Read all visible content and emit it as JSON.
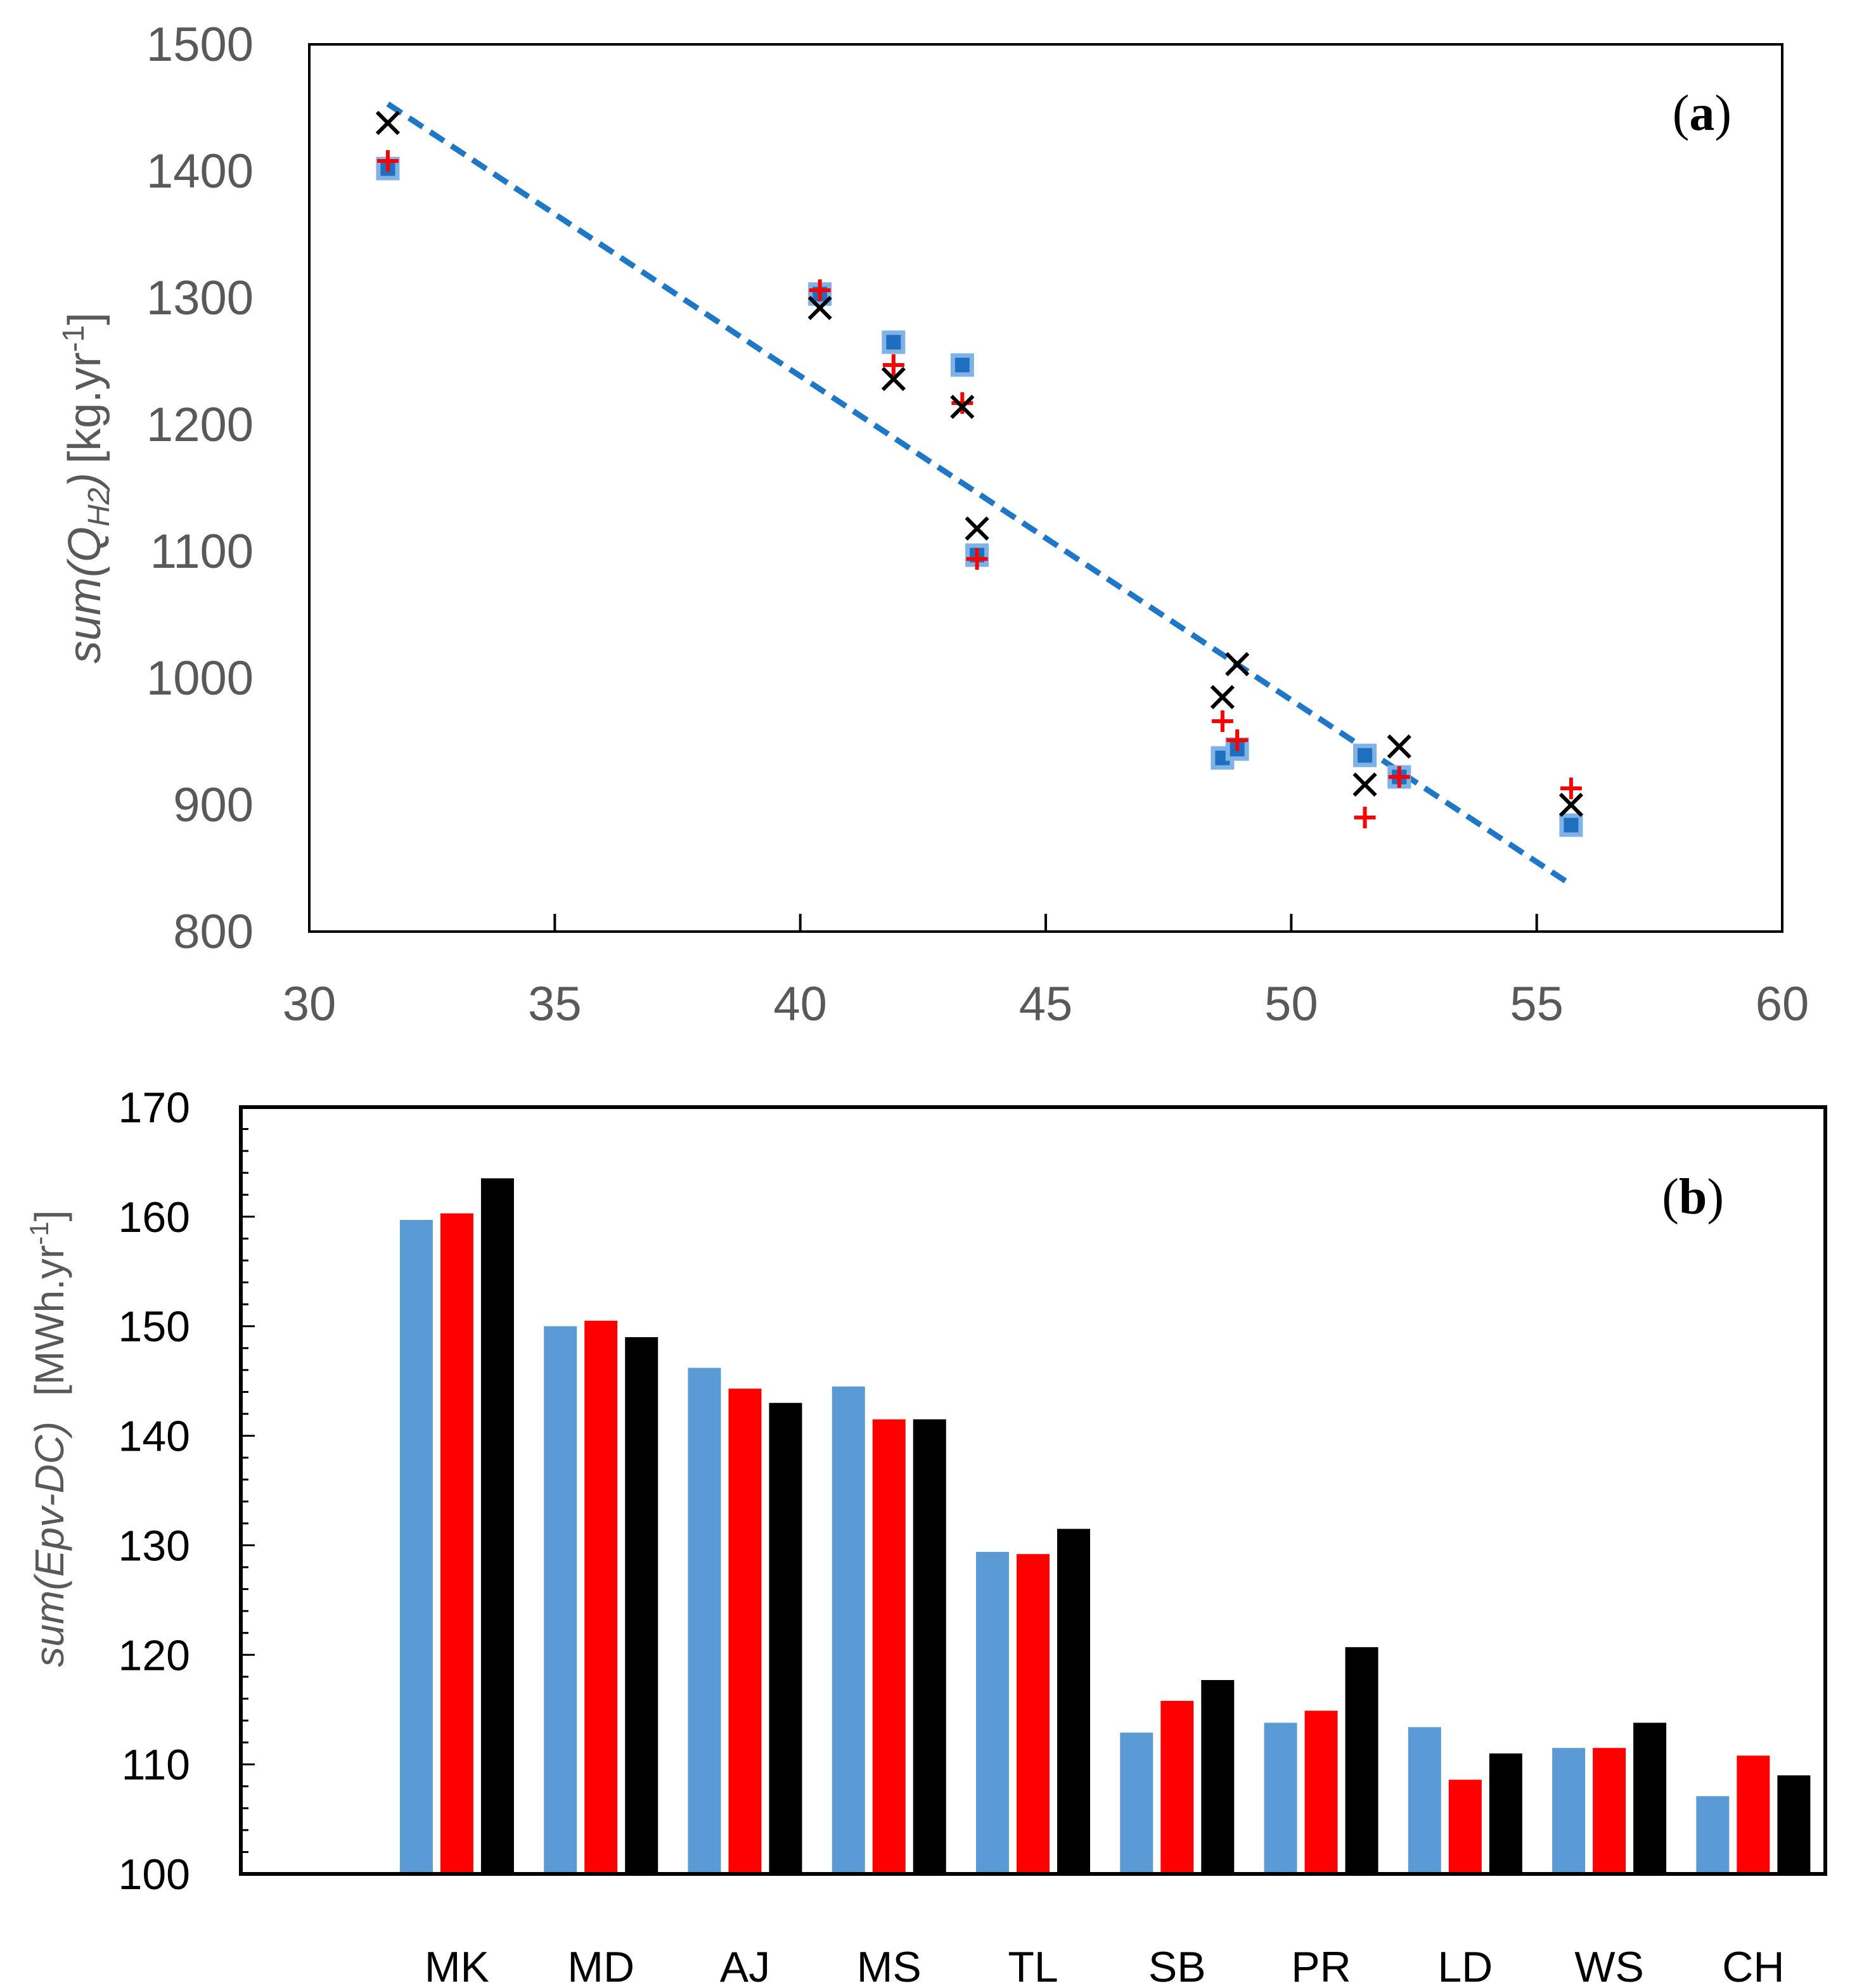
{
  "chart_data": [
    {
      "type": "scatter",
      "panel_label": "a",
      "xlim": [
        30,
        60
      ],
      "ylim": [
        800,
        1500
      ],
      "x_ticks": [
        "30",
        "35",
        "40",
        "45",
        "50",
        "55",
        "60"
      ],
      "y_ticks": [
        "800",
        "900",
        "1000",
        "1100",
        "1200",
        "1300",
        "1400",
        "1500"
      ],
      "ylabel": {
        "text_main": "sum(Q",
        "text_sub": "H2",
        "text_close": ")",
        "units_main": "[kg.yr",
        "units_sup": "-1",
        "units_close": "]"
      },
      "xlabel": "",
      "series": [
        {
          "name": "blue squares",
          "marker": "square",
          "color": "#1F6FC0",
          "edge": "#7FB2E5",
          "points": [
            [
              31.6,
              1402
            ],
            [
              40.4,
              1303
            ],
            [
              41.9,
              1265
            ],
            [
              43.3,
              1247
            ],
            [
              43.6,
              1097
            ],
            [
              48.6,
              937
            ],
            [
              48.9,
              944
            ],
            [
              51.5,
              939
            ],
            [
              52.2,
              922
            ],
            [
              55.7,
              884
            ]
          ]
        },
        {
          "name": "red pluses",
          "marker": "plus",
          "color": "#FF0000",
          "points": [
            [
              31.6,
              1408
            ],
            [
              40.4,
              1306
            ],
            [
              41.9,
              1247
            ],
            [
              43.3,
              1217
            ],
            [
              43.6,
              1094
            ],
            [
              48.6,
              966
            ],
            [
              48.9,
              951
            ],
            [
              51.5,
              890
            ],
            [
              52.2,
              922
            ],
            [
              55.7,
              913
            ]
          ]
        },
        {
          "name": "black crosses",
          "marker": "x",
          "color": "#000000",
          "points": [
            [
              31.6,
              1438
            ],
            [
              40.4,
              1292
            ],
            [
              41.9,
              1236
            ],
            [
              43.3,
              1214
            ],
            [
              43.6,
              1118
            ],
            [
              48.6,
              985
            ],
            [
              48.9,
              1011
            ],
            [
              51.5,
              916
            ],
            [
              52.2,
              946
            ],
            [
              55.7,
              900
            ]
          ]
        }
      ],
      "trendline": {
        "color": "#1F77C8",
        "style": "dashed",
        "points": [
          [
            31.6,
            1453
          ],
          [
            55.7,
            837
          ]
        ]
      }
    },
    {
      "type": "bar",
      "panel_label": "b",
      "ylim": [
        100,
        170
      ],
      "y_ticks": [
        "100",
        "110",
        "120",
        "130",
        "140",
        "150",
        "160",
        "170"
      ],
      "ylabel": {
        "text": "sum(Epv-DC)",
        "units_main": "[MWh.yr",
        "units_sup": "-1",
        "units_close": "]"
      },
      "xlabel": "",
      "categories": [
        "",
        "MK",
        "MD",
        "AJ",
        "MS",
        "TL",
        "SB",
        "PR",
        "LD",
        "WS",
        "CH"
      ],
      "series": [
        {
          "name": "series-blue",
          "color": "#5B9BD5",
          "values": [
            null,
            159.7,
            150.0,
            146.2,
            144.5,
            129.4,
            112.9,
            113.8,
            113.4,
            111.5,
            107.1
          ]
        },
        {
          "name": "series-red",
          "color": "#FF0000",
          "values": [
            null,
            160.3,
            150.5,
            144.3,
            141.5,
            129.2,
            115.8,
            114.9,
            108.6,
            111.5,
            110.8
          ]
        },
        {
          "name": "series-black",
          "color": "#000000",
          "values": [
            null,
            163.5,
            149.0,
            143.0,
            141.5,
            131.5,
            117.7,
            120.7,
            111.0,
            113.8,
            109.0
          ]
        }
      ]
    }
  ]
}
